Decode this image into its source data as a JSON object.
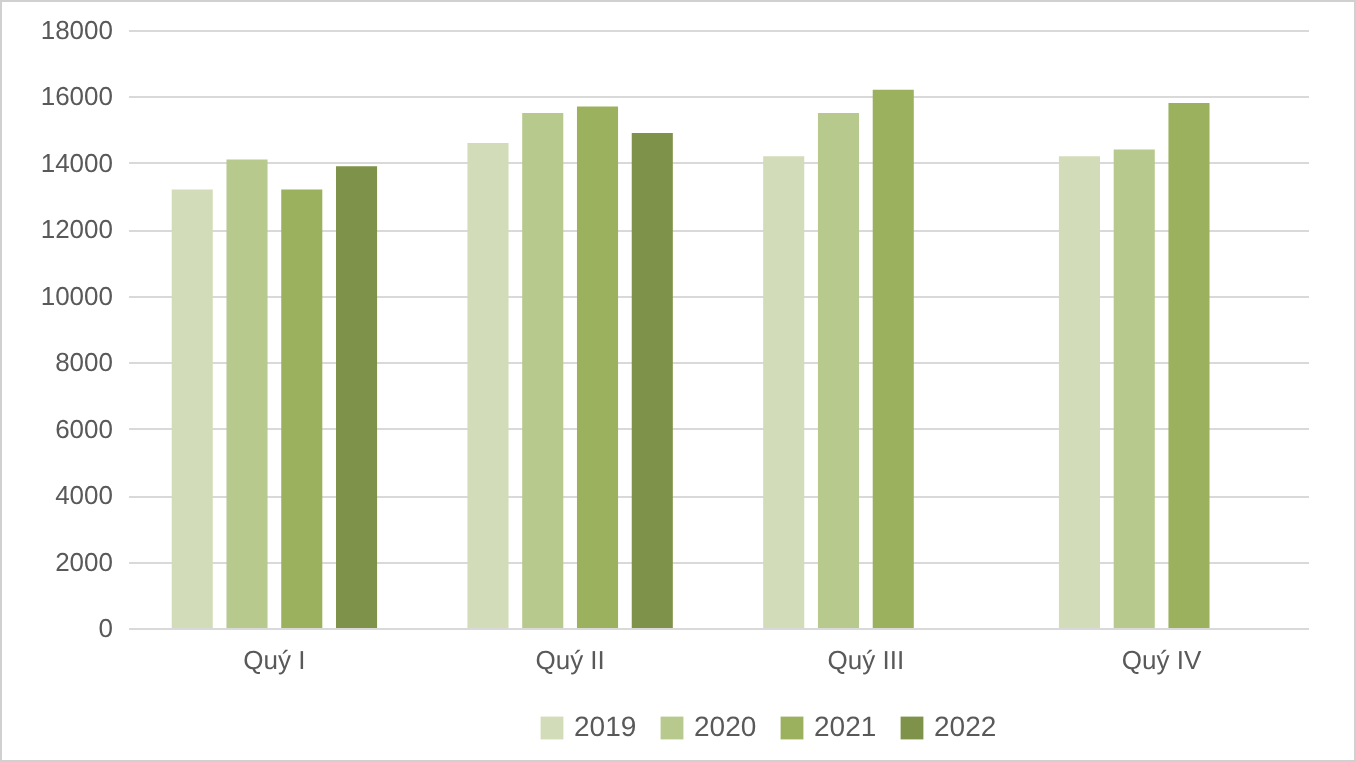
{
  "chart_data": {
    "type": "bar",
    "categories": [
      "Quý I",
      "Quý II",
      "Quý III",
      "Quý IV"
    ],
    "series": [
      {
        "name": "2019",
        "color": "#d3dcb8",
        "values": [
          13200,
          14600,
          14200,
          14200
        ]
      },
      {
        "name": "2020",
        "color": "#b7c98c",
        "values": [
          14100,
          15500,
          15500,
          14400
        ]
      },
      {
        "name": "2021",
        "color": "#9bb15e",
        "values": [
          13200,
          15700,
          16200,
          15800
        ]
      },
      {
        "name": "2022",
        "color": "#7f9249",
        "values": [
          13900,
          14900,
          null,
          null
        ]
      }
    ],
    "ylim": [
      0,
      18000
    ],
    "yticks": [
      0,
      2000,
      4000,
      6000,
      8000,
      10000,
      12000,
      14000,
      16000,
      18000
    ],
    "grid": "y",
    "legend": "bottom"
  }
}
